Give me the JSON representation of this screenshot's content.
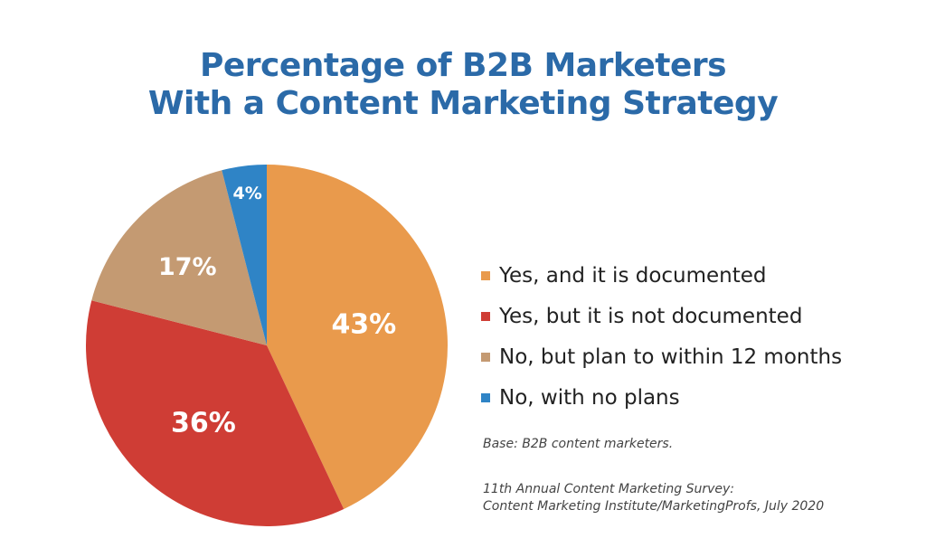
{
  "chart_data": {
    "type": "pie",
    "title": "Percentage of B2B Marketers With a Content Marketing Strategy",
    "title_lines": [
      "Percentage of B2B Marketers",
      "With a Content Marketing Strategy"
    ],
    "categories": [
      "Yes, and it is documented",
      "Yes, but it is not documented",
      "No, but plan to within 12 months",
      "No, with no plans"
    ],
    "values": [
      43,
      36,
      17,
      4
    ],
    "labels": [
      "43%",
      "36%",
      "17%",
      "4%"
    ],
    "colors": [
      "#e99a4c",
      "#cf3d35",
      "#c49a72",
      "#2f84c6"
    ],
    "legend_position": "right",
    "start_angle": "12 o'clock, clockwise"
  },
  "notes": {
    "base": "Base: B2B content marketers.",
    "source_line1": "11th Annual Content Marketing Survey:",
    "source_line2": "Content Marketing Institute/MarketingProfs, July 2020"
  }
}
